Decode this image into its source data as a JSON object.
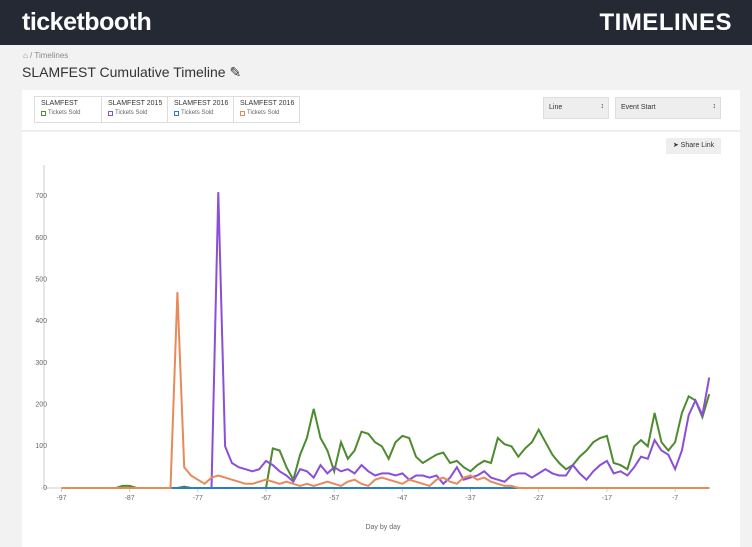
{
  "header": {
    "logo": "ticketbooth",
    "section": "TIMELINES"
  },
  "breadcrumb": {
    "item": "Timelines"
  },
  "page_title": "SLAMFEST Cumulative Timeline",
  "controls": {
    "chart_type": "Line",
    "alignment": "Event Start",
    "share": "Share Link"
  },
  "chart_data": {
    "type": "line",
    "x_label": "Day by day",
    "x": [
      -97,
      -96,
      -95,
      -94,
      -93,
      -92,
      -91,
      -90,
      -89,
      -88,
      -87,
      -86,
      -85,
      -84,
      -83,
      -82,
      -81,
      -80,
      -79,
      -78,
      -77,
      -76,
      -75,
      -74,
      -73,
      -72,
      -71,
      -70,
      -69,
      -68,
      -67,
      -66,
      -65,
      -64,
      -63,
      -62,
      -61,
      -60,
      -59,
      -58,
      -57,
      -56,
      -55,
      -54,
      -53,
      -52,
      -51,
      -50,
      -49,
      -48,
      -47,
      -46,
      -45,
      -44,
      -43,
      -42,
      -41,
      -40,
      -39,
      -38,
      -37,
      -36,
      -35,
      -34,
      -33,
      -32,
      -31,
      -30,
      -29,
      -28,
      -27,
      -26,
      -25,
      -24,
      -23,
      -22,
      -21,
      -20,
      -19,
      -18,
      -17,
      -16,
      -15,
      -14,
      -13,
      -12,
      -11,
      -10,
      -9,
      -8,
      -7,
      -6,
      -5,
      -4,
      -3,
      -2
    ],
    "series": [
      {
        "name": "SLAMFEST",
        "metric": "Tickets Sold",
        "color": "#4e8a2e",
        "values": [
          0,
          0,
          0,
          0,
          0,
          0,
          0,
          0,
          0,
          5,
          5,
          0,
          0,
          0,
          0,
          0,
          0,
          0,
          3,
          0,
          0,
          0,
          0,
          0,
          0,
          0,
          0,
          0,
          0,
          0,
          0,
          95,
          90,
          50,
          20,
          80,
          120,
          190,
          120,
          90,
          40,
          110,
          70,
          90,
          135,
          130,
          110,
          100,
          70,
          110,
          125,
          120,
          75,
          60,
          70,
          80,
          85,
          60,
          65,
          50,
          40,
          55,
          65,
          60,
          120,
          105,
          100,
          75,
          95,
          110,
          140,
          110,
          80,
          60,
          45,
          55,
          75,
          90,
          110,
          120,
          125,
          60,
          55,
          45,
          100,
          115,
          100,
          180,
          110,
          90,
          110,
          180,
          220,
          210,
          170,
          225
        ]
      },
      {
        "name": "SLAMFEST 2015",
        "metric": "Tickets Sold",
        "color": "#8a4fd6",
        "values": [
          0,
          0,
          0,
          0,
          0,
          0,
          0,
          0,
          0,
          0,
          0,
          0,
          0,
          0,
          0,
          0,
          0,
          0,
          0,
          0,
          0,
          0,
          0,
          710,
          100,
          60,
          50,
          45,
          40,
          45,
          65,
          55,
          40,
          30,
          15,
          45,
          40,
          25,
          55,
          35,
          50,
          40,
          45,
          35,
          55,
          40,
          30,
          35,
          35,
          30,
          35,
          20,
          30,
          30,
          25,
          30,
          10,
          25,
          50,
          20,
          25,
          30,
          40,
          25,
          20,
          15,
          30,
          35,
          35,
          25,
          35,
          45,
          35,
          30,
          30,
          55,
          35,
          20,
          40,
          55,
          65,
          35,
          40,
          30,
          50,
          75,
          70,
          115,
          90,
          80,
          45,
          90,
          175,
          210,
          175,
          265
        ]
      },
      {
        "name": "SLAMFEST 2016",
        "metric": "Tickets Sold",
        "color": "#2a7fbf",
        "values": [
          0,
          0,
          0,
          0,
          0,
          0,
          0,
          0,
          0,
          0,
          0,
          0,
          0,
          0,
          0,
          0,
          0,
          0,
          0,
          0,
          0,
          0,
          0,
          0,
          0,
          0,
          0,
          0,
          0,
          0,
          0,
          0,
          0,
          0,
          0,
          0,
          0,
          0,
          0,
          0,
          0,
          0,
          0,
          0,
          0,
          0,
          0,
          0,
          0,
          0,
          0,
          0,
          0,
          0,
          0,
          0,
          0,
          0,
          0,
          0,
          0,
          0,
          0,
          0,
          0,
          0,
          0,
          0,
          0,
          0,
          0,
          0,
          0,
          0,
          0,
          0,
          0,
          0,
          0,
          0,
          0,
          0,
          0,
          0,
          0,
          0,
          0,
          0,
          0,
          0,
          0,
          0,
          0,
          0,
          0,
          0
        ]
      },
      {
        "name": "SLAMFEST 2016",
        "metric": "Tickets Sold",
        "color": "#e8895a",
        "values": [
          0,
          0,
          0,
          0,
          0,
          0,
          0,
          0,
          0,
          0,
          0,
          0,
          0,
          0,
          0,
          0,
          0,
          470,
          50,
          30,
          20,
          10,
          25,
          30,
          25,
          20,
          15,
          10,
          10,
          15,
          20,
          15,
          10,
          15,
          10,
          5,
          10,
          5,
          10,
          15,
          10,
          5,
          15,
          20,
          10,
          5,
          20,
          25,
          20,
          15,
          10,
          20,
          15,
          10,
          5,
          20,
          25,
          15,
          10,
          25,
          30,
          20,
          25,
          15,
          10,
          5,
          5,
          0,
          0,
          0,
          0,
          0,
          0,
          0,
          0,
          0,
          0,
          0,
          0,
          0,
          0,
          0,
          0,
          0,
          0,
          0,
          0,
          0,
          0,
          0,
          0,
          0,
          0,
          0,
          0,
          0
        ]
      }
    ],
    "xlim": [
      -100,
      -1
    ],
    "xticks": [
      -97,
      -87,
      -77,
      -67,
      -57,
      -47,
      -37,
      -27,
      -17,
      -7
    ],
    "ylim": [
      0,
      775
    ],
    "yticks": [
      0,
      100,
      200,
      300,
      400,
      500,
      600,
      700
    ],
    "grid": false
  }
}
